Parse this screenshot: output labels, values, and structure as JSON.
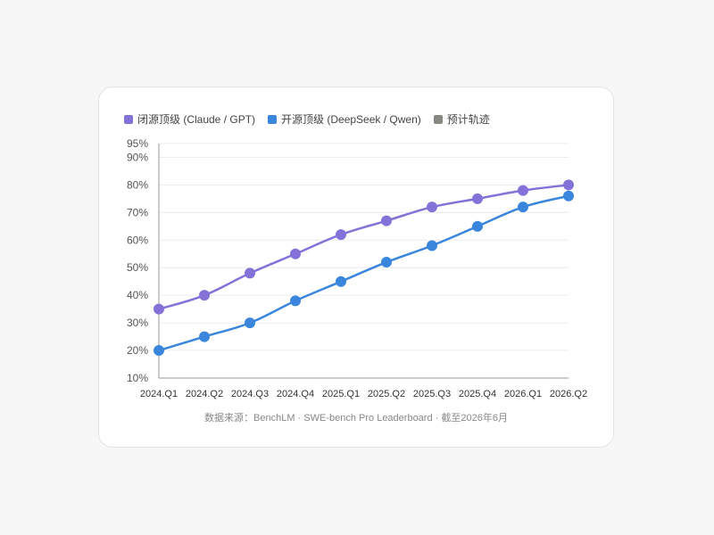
{
  "colors": {
    "closed": "#8472d9",
    "open": "#3a86dc",
    "forecast": "#888883",
    "grid": "#ececef",
    "axis": "#999999",
    "tick_text": "#555555"
  },
  "legend": {
    "closed": "闭源顶级 (Claude / GPT)",
    "open": "开源顶级 (DeepSeek / Qwen)",
    "forecast": "预计轨迹"
  },
  "source_text": "数据来源：BenchLM · SWE-bench Pro Leaderboard · 截至2026年6月",
  "chart_data": {
    "type": "line",
    "categories": [
      "2024.Q1",
      "2024.Q2",
      "2024.Q3",
      "2024.Q4",
      "2025.Q1",
      "2025.Q2",
      "2025.Q3",
      "2025.Q4",
      "2026.Q1",
      "2026.Q2"
    ],
    "series": [
      {
        "name": "闭源顶级 (Claude / GPT)",
        "values": [
          35,
          40,
          48,
          55,
          62,
          67,
          72,
          75,
          78,
          80
        ],
        "color": "#8472d9"
      },
      {
        "name": "开源顶级 (DeepSeek / Qwen)",
        "values": [
          20,
          25,
          30,
          38,
          45,
          52,
          58,
          65,
          72,
          76
        ],
        "color": "#3a86dc"
      }
    ],
    "yticks": [
      "10%",
      "20%",
      "30%",
      "40%",
      "50%",
      "60%",
      "70%",
      "80%",
      "90%",
      "95%"
    ],
    "ytick_values": [
      10,
      20,
      30,
      40,
      50,
      60,
      70,
      80,
      90,
      95
    ],
    "ylim": [
      10,
      95
    ],
    "grid": true,
    "legend_position": "top-left"
  }
}
